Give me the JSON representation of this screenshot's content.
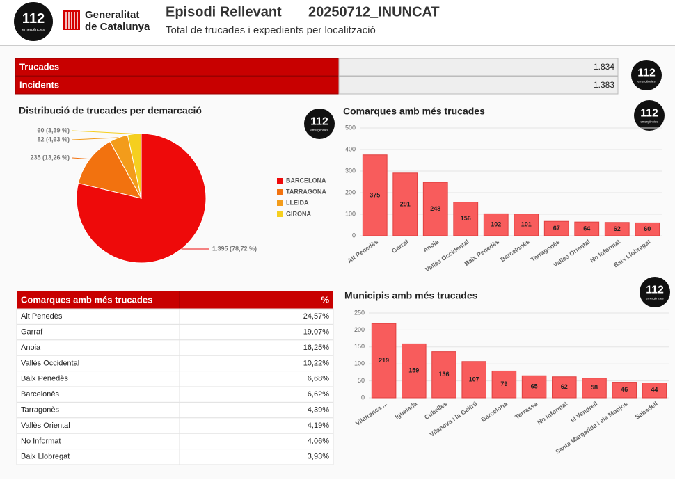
{
  "header": {
    "logo": "112",
    "logo_sub": "emergències",
    "org_line1": "Generalitat",
    "org_line2": "de Catalunya",
    "title": "Episodi Rellevant",
    "code": "20250712_INUNCAT",
    "subtitle": "Total de trucades i expedients per localització"
  },
  "summary": {
    "rows": [
      [
        "Trucades",
        "1.834"
      ],
      [
        "Incidents",
        "1.383"
      ]
    ]
  },
  "table": {
    "header": [
      "Comarques amb més trucades",
      "%"
    ],
    "rows": [
      [
        "Alt Penedès",
        "24,57%"
      ],
      [
        "Garraf",
        "19,07%"
      ],
      [
        "Anoia",
        "16,25%"
      ],
      [
        "Vallès Occidental",
        "10,22%"
      ],
      [
        "Baix Penedès",
        "6,68%"
      ],
      [
        "Barcelonès",
        "6,62%"
      ],
      [
        "Tarragonès",
        "4,39%"
      ],
      [
        "Vallès Oriental",
        "4,19%"
      ],
      [
        "No Informat",
        "4,06%"
      ],
      [
        "Baix Llobregat",
        "3,93%"
      ]
    ]
  },
  "chart_data": [
    {
      "type": "pie",
      "title": "Distribució de trucades per demarcació",
      "categories": [
        "BARCELONA",
        "TARRAGONA",
        "LLEIDA",
        "GIRONA"
      ],
      "values": [
        1395,
        235,
        82,
        60
      ],
      "value_labels": [
        "1.395 (78,72 %)",
        "235 (13,26 %)",
        "82 (4,63 %)",
        "60 (3,39 %)"
      ],
      "colors": [
        "#ee0a0a",
        "#f2720f",
        "#f39c1b",
        "#f5cf1f"
      ],
      "legend": "right"
    },
    {
      "type": "bar",
      "title": "Comarques amb més trucades",
      "categories": [
        "Alt Penedès",
        "Garraf",
        "Anoia",
        "Vallès Occidental",
        "Baix Penedès",
        "Barcelonès",
        "Tarragonès",
        "Vallès Oriental",
        "No Informat",
        "Baix Llobregat"
      ],
      "values": [
        375,
        291,
        248,
        156,
        102,
        101,
        67,
        64,
        62,
        60
      ],
      "color": "#f85c5c",
      "ylim": [
        0,
        500
      ],
      "yticks": [
        0,
        100,
        200,
        300,
        400,
        500
      ],
      "grid": true
    },
    {
      "type": "bar",
      "title": "Municipis amb més trucades",
      "categories": [
        "Vilafranca ...",
        "Igualada",
        "Cubelles",
        "Vilanova i la Geltrú",
        "Barcelona",
        "Terrassa",
        "No Informat",
        "el Vendrell",
        "Santa Margarida i els Monjos",
        "Sabadell"
      ],
      "values": [
        219,
        159,
        136,
        107,
        79,
        65,
        62,
        58,
        46,
        44
      ],
      "color": "#f85c5c",
      "ylim": [
        0,
        250
      ],
      "yticks": [
        0,
        50,
        100,
        150,
        200,
        250
      ],
      "grid": true
    }
  ]
}
